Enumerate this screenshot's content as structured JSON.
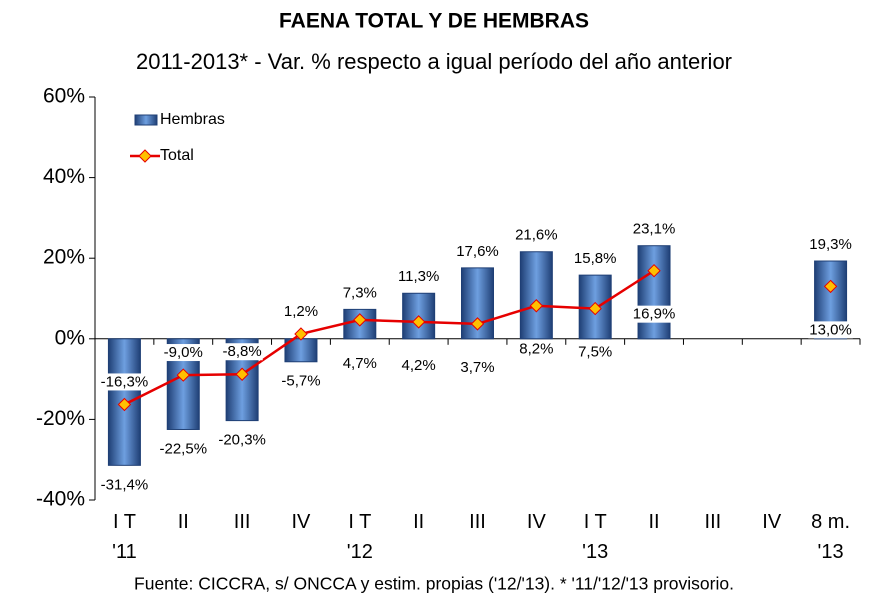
{
  "chart_data": {
    "type": "bar",
    "title": "FAENA TOTAL Y DE HEMBRAS",
    "subtitle": "2011-2013* - Var. % respecto a igual período del año anterior",
    "source": "Fuente: CICCRA, s/ ONCCA y estim. propias ('12/'13). * '11/'12/'13 provisorio.",
    "categories": [
      "I T\n'11",
      "II",
      "III",
      "IV",
      "I T\n'12",
      "II",
      "III",
      "IV",
      "I T\n'13",
      "II",
      "III",
      "IV",
      "8 m.\n'13"
    ],
    "series": [
      {
        "name": "Hembras",
        "type": "bar",
        "color": "#2e5c9e",
        "values": [
          -31.4,
          -22.5,
          -20.3,
          -5.7,
          7.3,
          11.3,
          17.6,
          21.6,
          15.8,
          23.1,
          null,
          null,
          19.3
        ],
        "value_labels": [
          "-31,4%",
          "-22,5%",
          "-20,3%",
          "-5,7%",
          "7,3%",
          "11,3%",
          "17,6%",
          "21,6%",
          "15,8%",
          "23,1%",
          null,
          null,
          "19,3%"
        ]
      },
      {
        "name": "Total",
        "type": "line",
        "color": "#e60000",
        "marker_color": "#ffc000",
        "values": [
          -16.3,
          -9.0,
          -8.8,
          1.2,
          4.7,
          4.2,
          3.7,
          8.2,
          7.5,
          16.9,
          null,
          null,
          13.0
        ],
        "value_labels": [
          "-16,3%",
          "-9,0%",
          "-8,8%",
          "1,2%",
          "4,7%",
          "4,2%",
          "3,7%",
          "8,2%",
          "7,5%",
          "16,9%",
          null,
          null,
          "13,0%"
        ]
      }
    ],
    "ylim": [
      -40,
      60
    ],
    "yticks": [
      {
        "value": -40,
        "label": "-40%"
      },
      {
        "value": -20,
        "label": "-20%"
      },
      {
        "value": 0,
        "label": "0%"
      },
      {
        "value": 20,
        "label": "20%"
      },
      {
        "value": 40,
        "label": "40%"
      },
      {
        "value": 60,
        "label": "60%"
      }
    ],
    "grid": false,
    "legend": "upper left"
  }
}
